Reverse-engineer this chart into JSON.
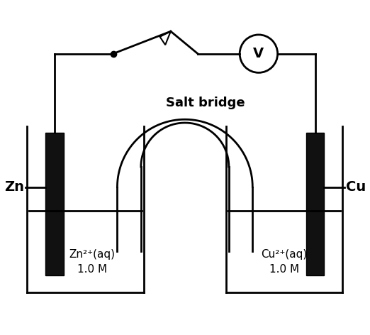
{
  "bg_color": "#ffffff",
  "line_color": "#000000",
  "electrode_color": "#111111",
  "figure_width": 5.22,
  "figure_height": 4.72,
  "dpi": 100,
  "salt_bridge_label": "Salt bridge",
  "left_label": "Zn",
  "right_label": "Cu",
  "voltmeter_label": "V"
}
